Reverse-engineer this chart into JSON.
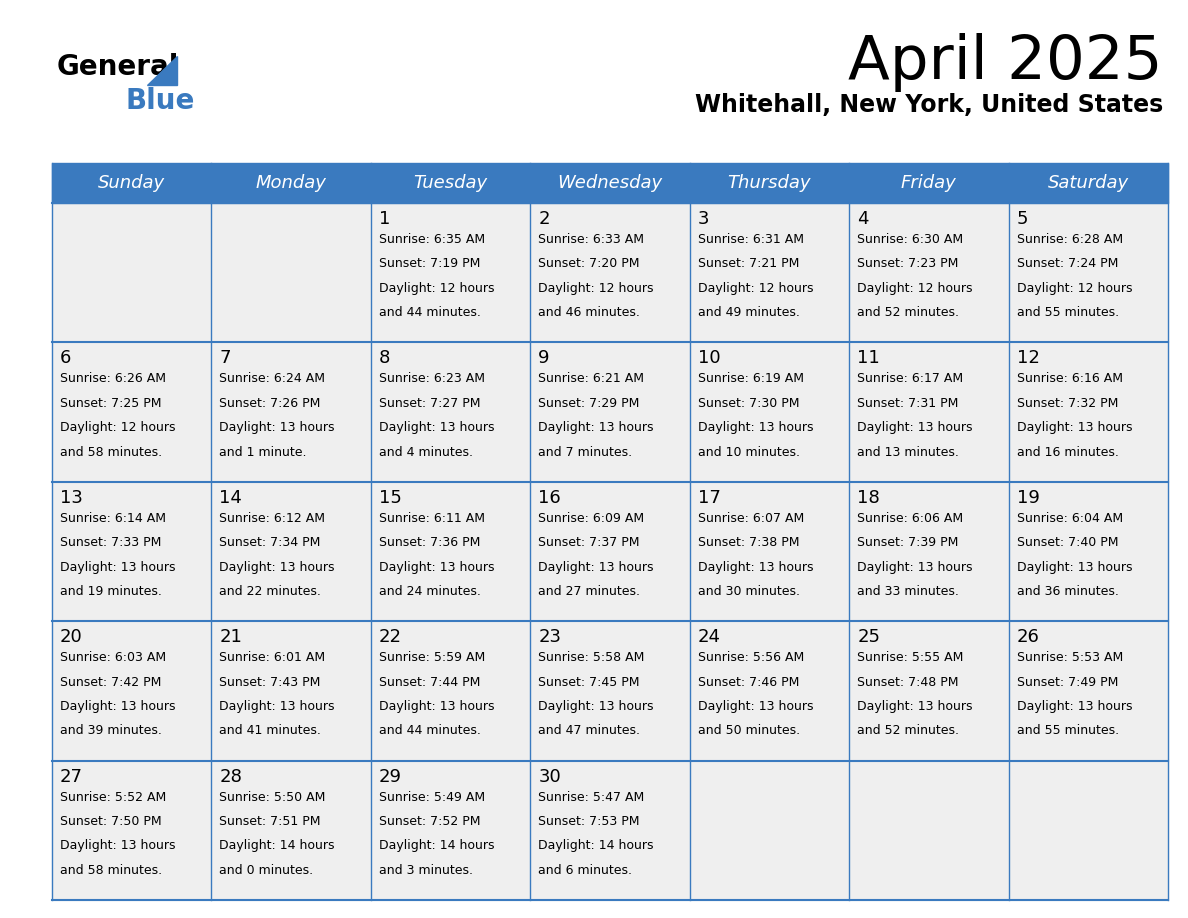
{
  "title": "April 2025",
  "subtitle": "Whitehall, New York, United States",
  "header_color": "#3a7abf",
  "header_text_color": "#ffffff",
  "cell_bg_color": "#efefef",
  "border_color": "#3a7abf",
  "text_color": "#000000",
  "day_headers": [
    "Sunday",
    "Monday",
    "Tuesday",
    "Wednesday",
    "Thursday",
    "Friday",
    "Saturday"
  ],
  "calendar": [
    [
      {
        "day": "",
        "sunrise": "",
        "sunset": "",
        "daylight": ""
      },
      {
        "day": "",
        "sunrise": "",
        "sunset": "",
        "daylight": ""
      },
      {
        "day": "1",
        "sunrise": "6:35 AM",
        "sunset": "7:19 PM",
        "daylight": "12 hours and 44 minutes."
      },
      {
        "day": "2",
        "sunrise": "6:33 AM",
        "sunset": "7:20 PM",
        "daylight": "12 hours and 46 minutes."
      },
      {
        "day": "3",
        "sunrise": "6:31 AM",
        "sunset": "7:21 PM",
        "daylight": "12 hours and 49 minutes."
      },
      {
        "day": "4",
        "sunrise": "6:30 AM",
        "sunset": "7:23 PM",
        "daylight": "12 hours and 52 minutes."
      },
      {
        "day": "5",
        "sunrise": "6:28 AM",
        "sunset": "7:24 PM",
        "daylight": "12 hours and 55 minutes."
      }
    ],
    [
      {
        "day": "6",
        "sunrise": "6:26 AM",
        "sunset": "7:25 PM",
        "daylight": "12 hours and 58 minutes."
      },
      {
        "day": "7",
        "sunrise": "6:24 AM",
        "sunset": "7:26 PM",
        "daylight": "13 hours and 1 minute."
      },
      {
        "day": "8",
        "sunrise": "6:23 AM",
        "sunset": "7:27 PM",
        "daylight": "13 hours and 4 minutes."
      },
      {
        "day": "9",
        "sunrise": "6:21 AM",
        "sunset": "7:29 PM",
        "daylight": "13 hours and 7 minutes."
      },
      {
        "day": "10",
        "sunrise": "6:19 AM",
        "sunset": "7:30 PM",
        "daylight": "13 hours and 10 minutes."
      },
      {
        "day": "11",
        "sunrise": "6:17 AM",
        "sunset": "7:31 PM",
        "daylight": "13 hours and 13 minutes."
      },
      {
        "day": "12",
        "sunrise": "6:16 AM",
        "sunset": "7:32 PM",
        "daylight": "13 hours and 16 minutes."
      }
    ],
    [
      {
        "day": "13",
        "sunrise": "6:14 AM",
        "sunset": "7:33 PM",
        "daylight": "13 hours and 19 minutes."
      },
      {
        "day": "14",
        "sunrise": "6:12 AM",
        "sunset": "7:34 PM",
        "daylight": "13 hours and 22 minutes."
      },
      {
        "day": "15",
        "sunrise": "6:11 AM",
        "sunset": "7:36 PM",
        "daylight": "13 hours and 24 minutes."
      },
      {
        "day": "16",
        "sunrise": "6:09 AM",
        "sunset": "7:37 PM",
        "daylight": "13 hours and 27 minutes."
      },
      {
        "day": "17",
        "sunrise": "6:07 AM",
        "sunset": "7:38 PM",
        "daylight": "13 hours and 30 minutes."
      },
      {
        "day": "18",
        "sunrise": "6:06 AM",
        "sunset": "7:39 PM",
        "daylight": "13 hours and 33 minutes."
      },
      {
        "day": "19",
        "sunrise": "6:04 AM",
        "sunset": "7:40 PM",
        "daylight": "13 hours and 36 minutes."
      }
    ],
    [
      {
        "day": "20",
        "sunrise": "6:03 AM",
        "sunset": "7:42 PM",
        "daylight": "13 hours and 39 minutes."
      },
      {
        "day": "21",
        "sunrise": "6:01 AM",
        "sunset": "7:43 PM",
        "daylight": "13 hours and 41 minutes."
      },
      {
        "day": "22",
        "sunrise": "5:59 AM",
        "sunset": "7:44 PM",
        "daylight": "13 hours and 44 minutes."
      },
      {
        "day": "23",
        "sunrise": "5:58 AM",
        "sunset": "7:45 PM",
        "daylight": "13 hours and 47 minutes."
      },
      {
        "day": "24",
        "sunrise": "5:56 AM",
        "sunset": "7:46 PM",
        "daylight": "13 hours and 50 minutes."
      },
      {
        "day": "25",
        "sunrise": "5:55 AM",
        "sunset": "7:48 PM",
        "daylight": "13 hours and 52 minutes."
      },
      {
        "day": "26",
        "sunrise": "5:53 AM",
        "sunset": "7:49 PM",
        "daylight": "13 hours and 55 minutes."
      }
    ],
    [
      {
        "day": "27",
        "sunrise": "5:52 AM",
        "sunset": "7:50 PM",
        "daylight": "13 hours and 58 minutes."
      },
      {
        "day": "28",
        "sunrise": "5:50 AM",
        "sunset": "7:51 PM",
        "daylight": "14 hours and 0 minutes."
      },
      {
        "day": "29",
        "sunrise": "5:49 AM",
        "sunset": "7:52 PM",
        "daylight": "14 hours and 3 minutes."
      },
      {
        "day": "30",
        "sunrise": "5:47 AM",
        "sunset": "7:53 PM",
        "daylight": "14 hours and 6 minutes."
      },
      {
        "day": "",
        "sunrise": "",
        "sunset": "",
        "daylight": ""
      },
      {
        "day": "",
        "sunrise": "",
        "sunset": "",
        "daylight": ""
      },
      {
        "day": "",
        "sunrise": "",
        "sunset": "",
        "daylight": ""
      }
    ]
  ],
  "logo_color_text": "#000000",
  "logo_color_blue": "#3a7abf",
  "fig_width": 11.88,
  "fig_height": 9.18,
  "dpi": 100
}
